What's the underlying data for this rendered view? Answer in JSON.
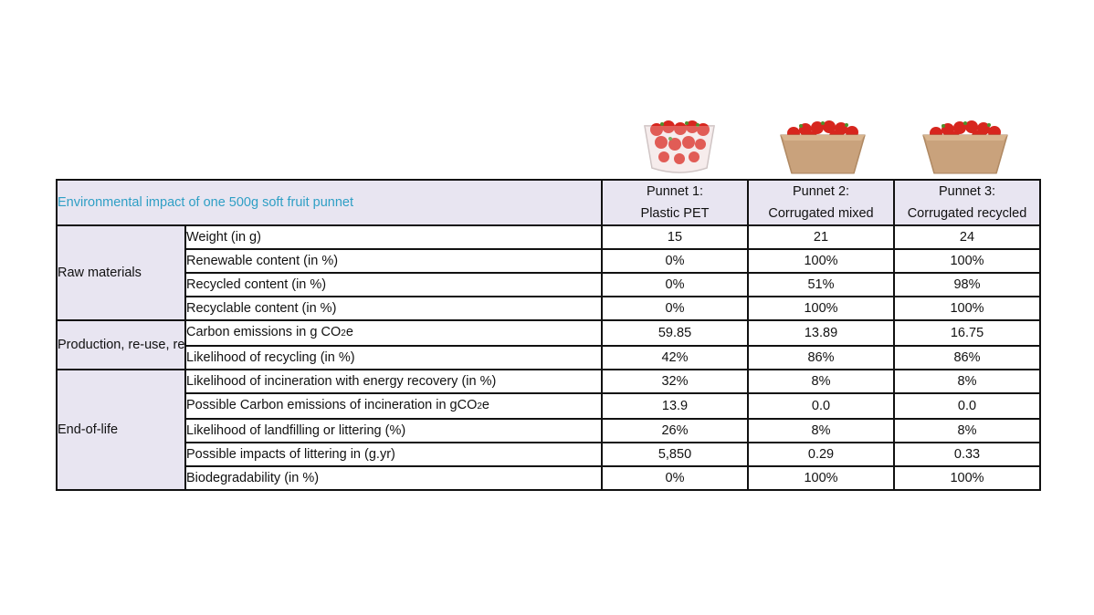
{
  "title": "Environmental impact of one 500g soft fruit punnet",
  "columns": [
    {
      "line1": "Punnet 1:",
      "line2": "Plastic PET",
      "image": "plastic-punnet-strawberries"
    },
    {
      "line1": "Punnet 2:",
      "line2": "Corrugated mixed",
      "image": "cardboard-punnet-strawberries"
    },
    {
      "line1": "Punnet 3:",
      "line2": "Corrugated recycled",
      "image": "cardboard-punnet-strawberries"
    }
  ],
  "categories": {
    "raw": "Raw materials",
    "production": "Production, re-use, recycling",
    "eol": "End-of-life"
  },
  "rows": [
    {
      "label": "Weight (in g)",
      "values": [
        "15",
        "21",
        "24"
      ]
    },
    {
      "label": "Renewable content (in %)",
      "values": [
        "0%",
        "100%",
        "100%"
      ]
    },
    {
      "label": "Recycled content (in %)",
      "values": [
        "0%",
        "51%",
        "98%"
      ]
    },
    {
      "label": "Recyclable content (in %)",
      "values": [
        "0%",
        "100%",
        "100%"
      ]
    },
    {
      "label": "Carbon emissions in g CO",
      "sub": "2",
      "tail": "e",
      "values": [
        "59.85",
        "13.89",
        "16.75"
      ]
    },
    {
      "label": "Likelihood of recycling (in %)",
      "values": [
        "42%",
        "86%",
        "86%"
      ]
    },
    {
      "label": "Likelihood of incineration with energy recovery (in %)",
      "values": [
        "32%",
        "8%",
        "8%"
      ]
    },
    {
      "label": "Possible Carbon emissions of incineration in gCO",
      "sub": "2",
      "tail": "e",
      "values": [
        "13.9",
        "0.0",
        "0.0"
      ]
    },
    {
      "label": "Likelihood of landfilling or littering (%)",
      "values": [
        "26%",
        "8%",
        "8%"
      ]
    },
    {
      "label": "Possible impacts of littering in (g.yr)",
      "values": [
        "5,850",
        "0.29",
        "0.33"
      ]
    },
    {
      "label": "Biodegradability (in %)",
      "values": [
        "0%",
        "100%",
        "100%"
      ]
    }
  ]
}
